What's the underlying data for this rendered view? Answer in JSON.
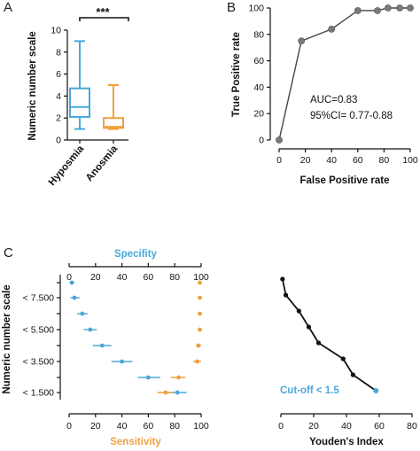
{
  "panels": {
    "A": "A",
    "B": "B",
    "C": "C"
  },
  "chart_data": [
    {
      "id": "A",
      "type": "box",
      "ylabel": "Numeric number scale",
      "ylim": [
        0,
        10
      ],
      "yticks": [
        "0",
        "2",
        "4",
        "6",
        "8",
        "10"
      ],
      "significance": "***",
      "colors": {
        "Hyposmia": "#4aa8dc",
        "Anosmia": "#f0a040"
      },
      "groups": [
        {
          "name": "Hyposmia",
          "min": 1,
          "q1": 2.1,
          "median": 3,
          "q3": 4.7,
          "max": 9
        },
        {
          "name": "Anosmia",
          "min": 1,
          "q1": 1.1,
          "median": 1.2,
          "q3": 2,
          "max": 5
        }
      ]
    },
    {
      "id": "B",
      "type": "line",
      "xlabel": "False Positive rate",
      "ylabel": "True Positive rate",
      "xlim": [
        0,
        100
      ],
      "ylim": [
        0,
        100
      ],
      "xticks": [
        "0",
        "20",
        "40",
        "60",
        "80",
        "100"
      ],
      "yticks": [
        "0",
        "20",
        "40",
        "60",
        "80",
        "100"
      ],
      "annotations": [
        "AUC=0.83",
        "95%CI= 0.77-0.88"
      ],
      "x": [
        0,
        17,
        40,
        60,
        75,
        83,
        92,
        100
      ],
      "y": [
        0,
        75,
        84,
        98,
        98,
        100,
        100,
        100
      ]
    },
    {
      "id": "C-left",
      "type": "scatter",
      "title": "Specifity",
      "xlabel": "Sensitivity",
      "ylabel": "Numeric number scale",
      "xlim": [
        0,
        100
      ],
      "xticks": [
        "0",
        "20",
        "40",
        "60",
        "80",
        "100"
      ],
      "ytick_labels": [
        "< 7.500",
        "< 5.500",
        "< 3.500",
        "< 1.500"
      ],
      "colors": {
        "Specifity": "#4aa8dc",
        "Sensitivity": "#f0a040"
      },
      "series": [
        {
          "name": "Specifity",
          "points": [
            {
              "v": 2,
              "lo": 1,
              "hi": 4
            },
            {
              "v": 4,
              "lo": 1,
              "hi": 8
            },
            {
              "v": 10,
              "lo": 6,
              "hi": 14
            },
            {
              "v": 16,
              "lo": 11,
              "hi": 21
            },
            {
              "v": 25,
              "lo": 18,
              "hi": 32
            },
            {
              "v": 40,
              "lo": 32,
              "hi": 48
            },
            {
              "v": 60,
              "lo": 52,
              "hi": 69
            },
            {
              "v": 82,
              "lo": 74,
              "hi": 89
            }
          ]
        },
        {
          "name": "Sensitivity",
          "points": [
            {
              "v": 99,
              "lo": 98,
              "hi": 100
            },
            {
              "v": 99,
              "lo": 98,
              "hi": 100
            },
            {
              "v": 99,
              "lo": 98,
              "hi": 100
            },
            {
              "v": 99,
              "lo": 98,
              "hi": 100
            },
            {
              "v": 98,
              "lo": 96,
              "hi": 100
            },
            {
              "v": 97,
              "lo": 94,
              "hi": 100
            },
            {
              "v": 83,
              "lo": 77,
              "hi": 88
            },
            {
              "v": 73,
              "lo": 67,
              "hi": 79
            }
          ]
        }
      ]
    },
    {
      "id": "C-right",
      "type": "line",
      "xlabel": "Youden's Index",
      "xlim": [
        0,
        80
      ],
      "xticks": [
        "0",
        "20",
        "40",
        "60",
        "80"
      ],
      "annotation": "Cut-off < 1.5",
      "annotation_color": "#4aa8dc",
      "x": [
        1,
        3,
        11,
        17,
        23,
        38,
        44,
        58
      ],
      "highlight_index": 7
    }
  ]
}
